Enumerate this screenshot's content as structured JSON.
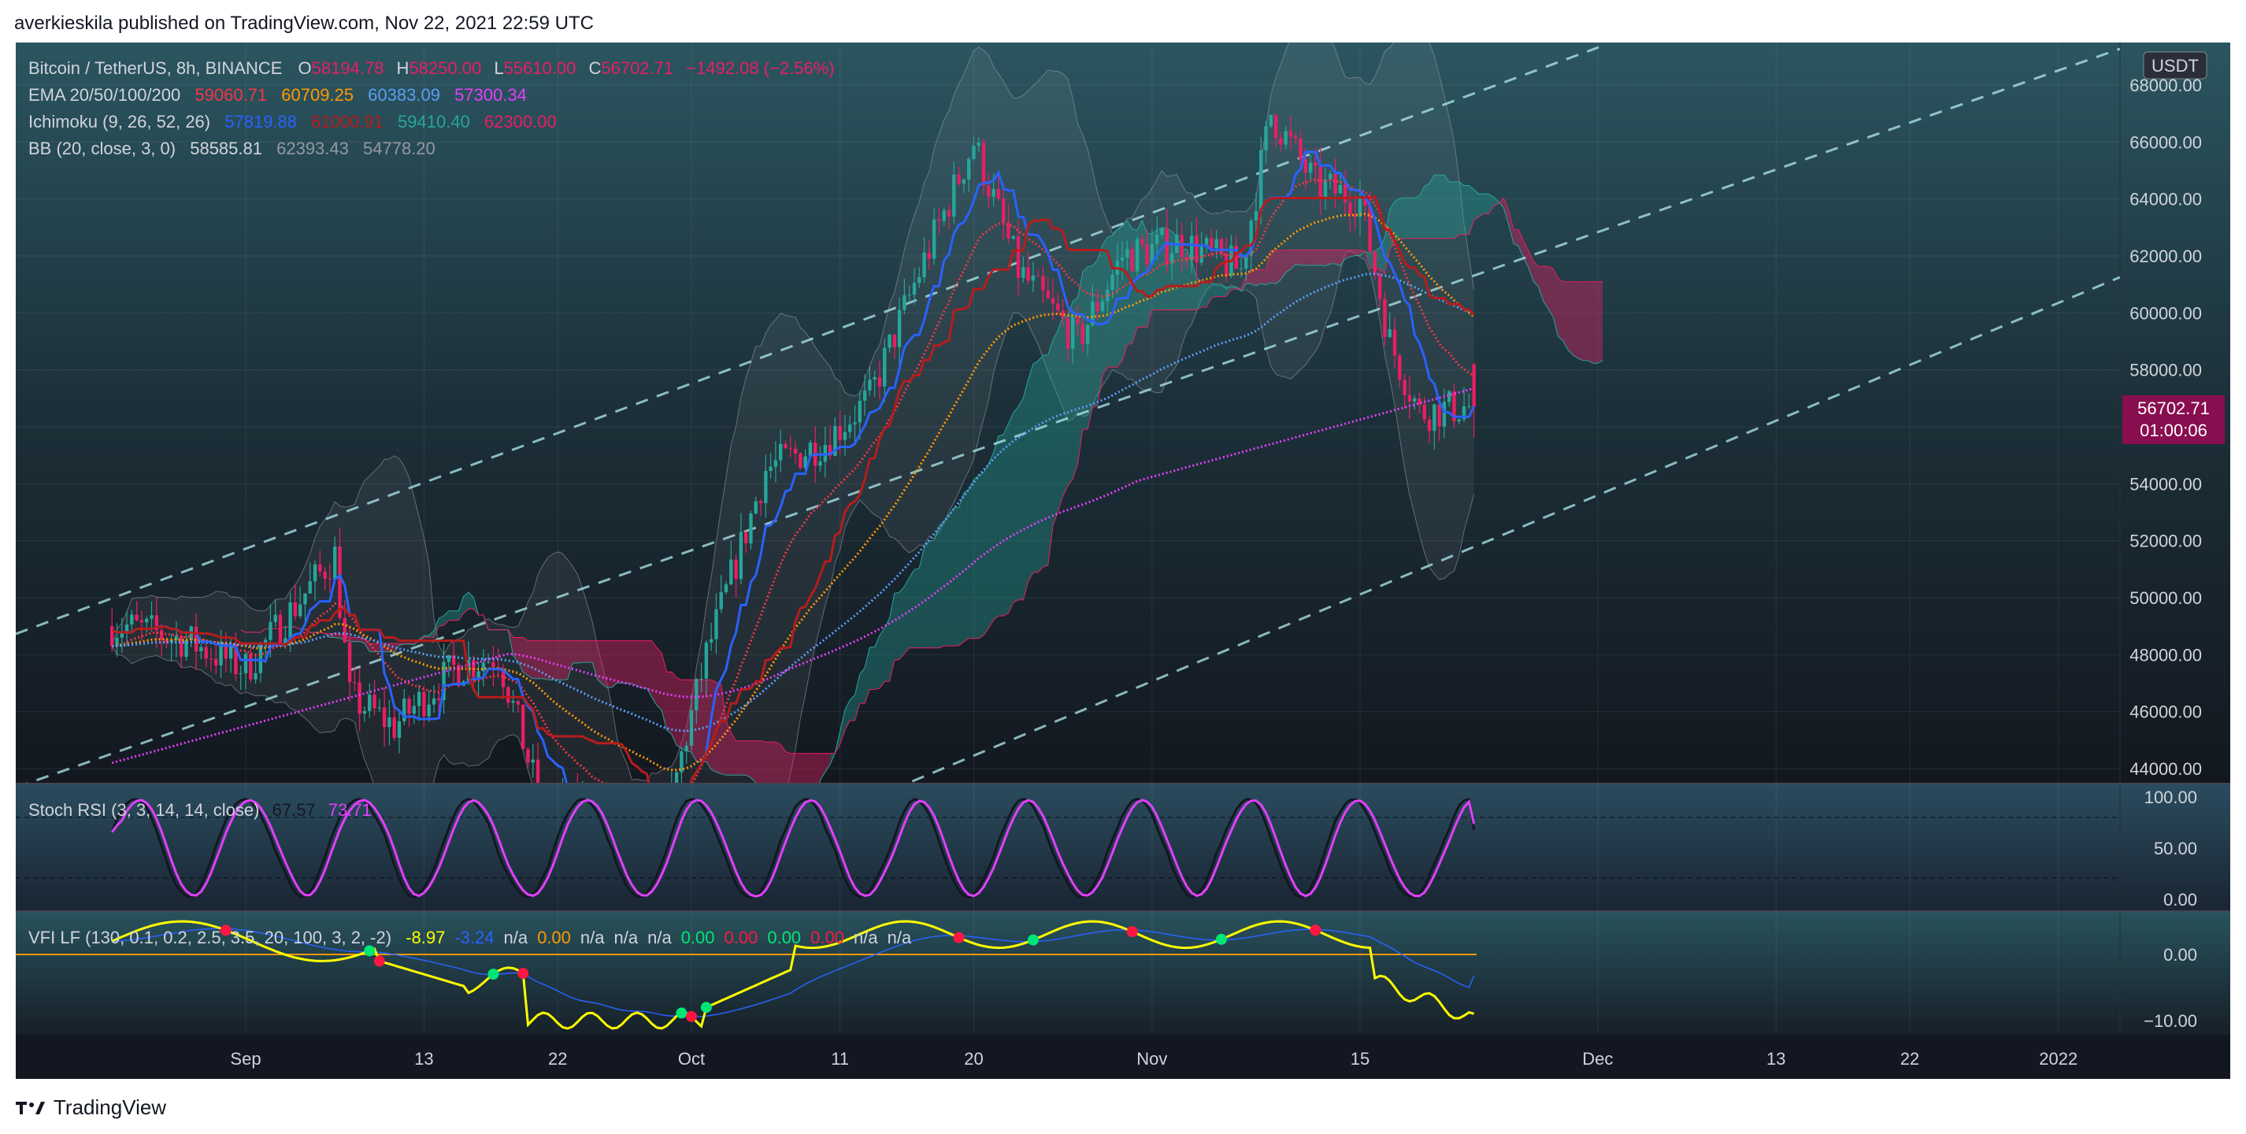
{
  "header": {
    "publisher_line": "averkieskila published on TradingView.com, Nov 22, 2021 22:59 UTC"
  },
  "footer": {
    "brand": "TradingView"
  },
  "price_pane": {
    "currency_badge": "USDT",
    "last_price": "56702.71",
    "countdown": "01:00:06",
    "legend": {
      "symbol": "Bitcoin / TetherUS, 8h, BINANCE",
      "o_label": "O",
      "o_value": "58194.78",
      "h_label": "H",
      "h_value": "58250.00",
      "l_label": "L",
      "l_value": "55610.00",
      "c_label": "C",
      "c_value": "56702.71",
      "change": "−1492.08 (−2.56%)",
      "ema_label": "EMA 20/50/100/200",
      "ema_values": [
        "59060.71",
        "60709.25",
        "60383.09",
        "57300.34"
      ],
      "ichimoku_label": "Ichimoku (9, 26, 52, 26)",
      "ichimoku_values": [
        "57819.88",
        "61000.91",
        "59410.40",
        "62300.00"
      ],
      "bb_label": "BB (20, close, 3, 0)",
      "bb_values": [
        "58585.81",
        "62393.43",
        "54778.20"
      ]
    },
    "y_ticks": [
      "68000.00",
      "66000.00",
      "64000.00",
      "62000.00",
      "60000.00",
      "58000.00",
      "54000.00",
      "52000.00",
      "50000.00",
      "48000.00",
      "46000.00",
      "44000.00"
    ]
  },
  "stoch_pane": {
    "label": "Stoch RSI (3, 3, 14, 14, close)",
    "k_value": "67.57",
    "d_value": "73.71",
    "y_ticks": [
      "100.00",
      "50.00",
      "0.00"
    ]
  },
  "vfi_pane": {
    "label": "VFI LF (130, 0.1, 0.2, 2.5, 3.5, 20, 100, 3, 2, -2)",
    "values": [
      "-8.97",
      "-3.24",
      "n/a",
      "0.00",
      "n/a",
      "n/a",
      "n/a",
      "0.00",
      "0.00",
      "0.00",
      "0.00",
      "n/a",
      "n/a"
    ],
    "value_colors": [
      "#ffff00",
      "#2962ff",
      "#d1d4dc",
      "#ff9800",
      "#d1d4dc",
      "#d1d4dc",
      "#d1d4dc",
      "#00e676",
      "#ff1744",
      "#00e676",
      "#ff1744",
      "#d1d4dc",
      "#d1d4dc"
    ],
    "y_ticks": [
      "0.00",
      "−10.00"
    ]
  },
  "time_axis": {
    "ticks": [
      "Sep",
      "13",
      "22",
      "Oct",
      "11",
      "20",
      "Nov",
      "15",
      "Dec",
      "13",
      "22",
      "2022"
    ]
  },
  "colors": {
    "ema20": "#f23645",
    "ema50": "#ff9800",
    "ema100": "#5b9cf6",
    "ema200": "#e040fb",
    "tenkan": "#2962ff",
    "kijun": "#b71c1c",
    "bull": "#26a69a",
    "bear": "#e91e63",
    "stoch_k": "#131722",
    "stoch_d": "#e040fb",
    "vfi": "#ffff00",
    "vfi_signal": "#2962ff",
    "price_badge": "#880e4f"
  },
  "chart_data": {
    "type": "candlestick",
    "timeframe": "8h",
    "ylim": [
      43500,
      69000
    ],
    "price_path": [
      {
        "date": "2021-08-24",
        "close": 49000
      },
      {
        "date": "2021-08-28",
        "close": 48500
      },
      {
        "date": "2021-09-01",
        "close": 47500
      },
      {
        "date": "2021-09-04",
        "close": 49500
      },
      {
        "date": "2021-09-07",
        "close": 51500
      },
      {
        "date": "2021-09-08",
        "close": 46500
      },
      {
        "date": "2021-09-11",
        "close": 45500
      },
      {
        "date": "2021-09-15",
        "close": 47500
      },
      {
        "date": "2021-09-18",
        "close": 48000
      },
      {
        "date": "2021-09-21",
        "close": 42500
      },
      {
        "date": "2021-09-25",
        "close": 42600
      },
      {
        "date": "2021-09-29",
        "close": 41600
      },
      {
        "date": "2021-10-02",
        "close": 48000
      },
      {
        "date": "2021-10-06",
        "close": 54500
      },
      {
        "date": "2021-10-10",
        "close": 55500
      },
      {
        "date": "2021-10-13",
        "close": 57000
      },
      {
        "date": "2021-10-16",
        "close": 61000
      },
      {
        "date": "2021-10-20",
        "close": 66000
      },
      {
        "date": "2021-10-23",
        "close": 61500
      },
      {
        "date": "2021-10-27",
        "close": 59000
      },
      {
        "date": "2021-10-30",
        "close": 62000
      },
      {
        "date": "2021-11-03",
        "close": 62500
      },
      {
        "date": "2021-11-07",
        "close": 61500
      },
      {
        "date": "2021-11-09",
        "close": 67000
      },
      {
        "date": "2021-11-12",
        "close": 64500
      },
      {
        "date": "2021-11-15",
        "close": 64000
      },
      {
        "date": "2021-11-17",
        "close": 59000
      },
      {
        "date": "2021-11-19",
        "close": 56500
      },
      {
        "date": "2021-11-22",
        "close": 56702.71
      }
    ],
    "ema": {
      "20": 59060.71,
      "50": 60709.25,
      "100": 60383.09,
      "200": 57300.34
    },
    "stoch_rsi": {
      "k": 67.57,
      "d": 73.71,
      "levels": [
        80,
        20
      ]
    },
    "vfi": {
      "value": -8.97,
      "signal": -3.24,
      "ylim": [
        -12,
        2
      ]
    }
  }
}
